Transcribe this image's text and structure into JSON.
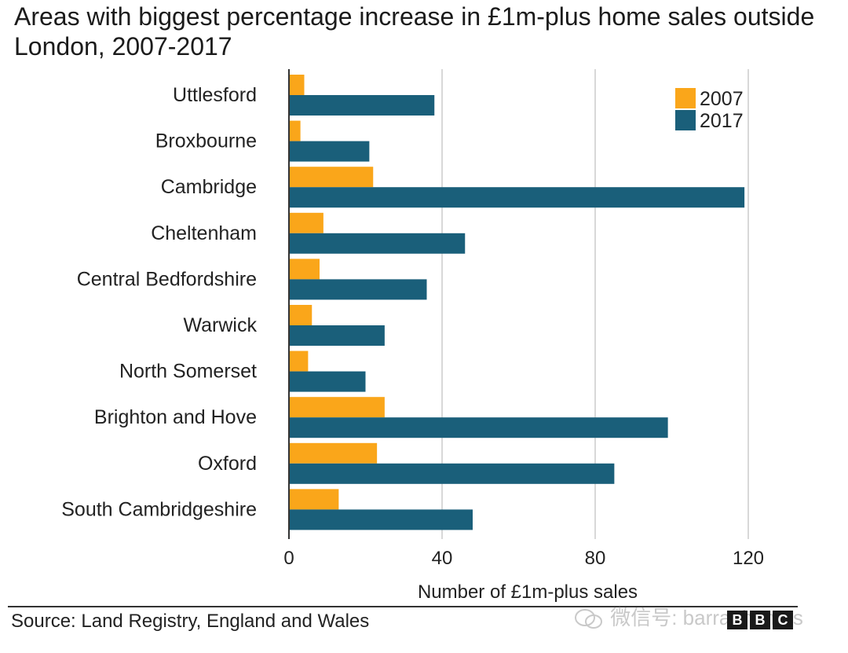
{
  "chart_data": {
    "type": "bar",
    "orientation": "horizontal",
    "title": "Areas with biggest percentage increase in £1m-plus home sales outside London, 2007-2017",
    "xlabel": "Number of £1m-plus sales",
    "ylabel": "",
    "xlim": [
      0,
      120
    ],
    "xticks": [
      0,
      40,
      80,
      120
    ],
    "grid": true,
    "legend_position": "top-right",
    "categories": [
      "Uttlesford",
      "Broxbourne",
      "Cambridge",
      "Cheltenham",
      "Central Bedfordshire",
      "Warwick",
      "North Somerset",
      "Brighton and Hove",
      "Oxford",
      "South Cambridgeshire"
    ],
    "series": [
      {
        "name": "2007",
        "color": "#FAA61A",
        "values": [
          4,
          3,
          22,
          9,
          8,
          6,
          5,
          25,
          23,
          13
        ]
      },
      {
        "name": "2017",
        "color": "#1A5F7A",
        "values": [
          38,
          21,
          119,
          46,
          36,
          25,
          20,
          99,
          85,
          48
        ]
      }
    ]
  },
  "footer": {
    "source": "Source: Land Registry, England and Wales",
    "watermark": "微信号: barratthomes",
    "logo_letters": [
      "B",
      "B",
      "C"
    ]
  }
}
